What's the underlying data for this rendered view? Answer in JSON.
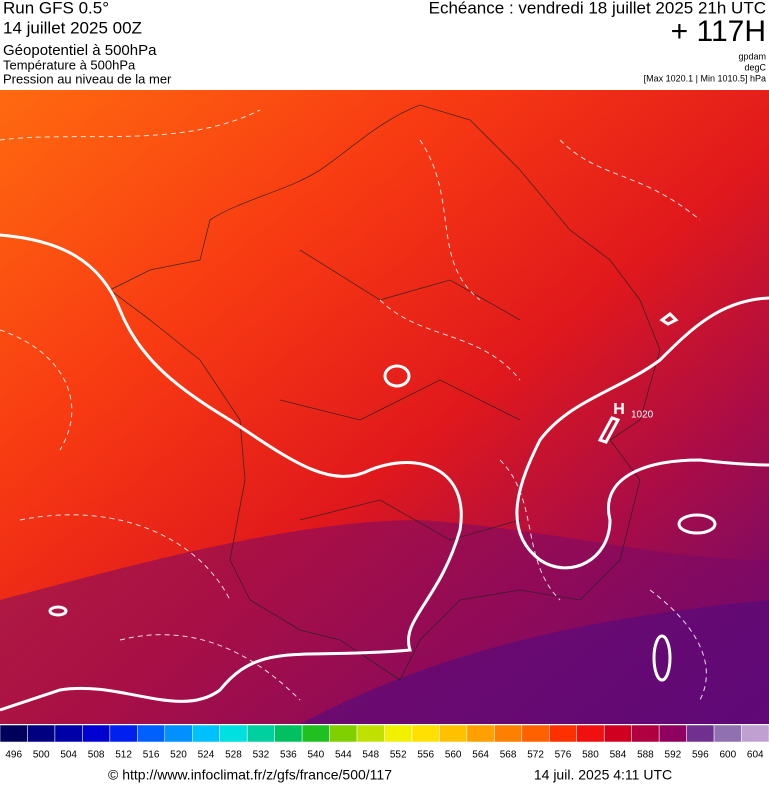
{
  "header": {
    "run": "Run GFS 0.5°",
    "run_date": "14 juillet 2025 00Z",
    "field1": "Géopotentiel à 500hPa",
    "field2": "Température à 500hPa",
    "field3": "Pression au niveau de la mer",
    "valid": "Echéance : vendredi 18 juillet 2025 21h UTC",
    "lead": "+ 117H",
    "unit1": "gpdam",
    "unit2": "degC",
    "minmax": "[Max 1020.1 | Min 1010.5] hPa"
  },
  "map": {
    "high_symbol": "H",
    "isobar_label": "1020"
  },
  "colorbar": {
    "values": [
      496,
      500,
      504,
      508,
      512,
      516,
      520,
      524,
      528,
      532,
      536,
      540,
      544,
      548,
      552,
      556,
      560,
      564,
      568,
      572,
      576,
      580,
      584,
      588,
      592,
      596,
      600,
      604
    ],
    "colors": [
      "#00005a",
      "#000080",
      "#0000a8",
      "#0000d0",
      "#0020f0",
      "#0060ff",
      "#0090ff",
      "#00c0ff",
      "#00e0e0",
      "#00d0a0",
      "#00c060",
      "#20c020",
      "#80d000",
      "#c0e000",
      "#f0f000",
      "#ffe000",
      "#ffc000",
      "#ffa000",
      "#ff8000",
      "#ff6000",
      "#ff3000",
      "#f01010",
      "#d00020",
      "#b00040",
      "#900060",
      "#703090",
      "#9070b0",
      "#c0a0d0"
    ]
  },
  "footer": {
    "source": "© http://www.infoclimat.fr/z/gfs/france/500/117",
    "timestamp": "14 juil. 2025  4:11 UTC"
  }
}
